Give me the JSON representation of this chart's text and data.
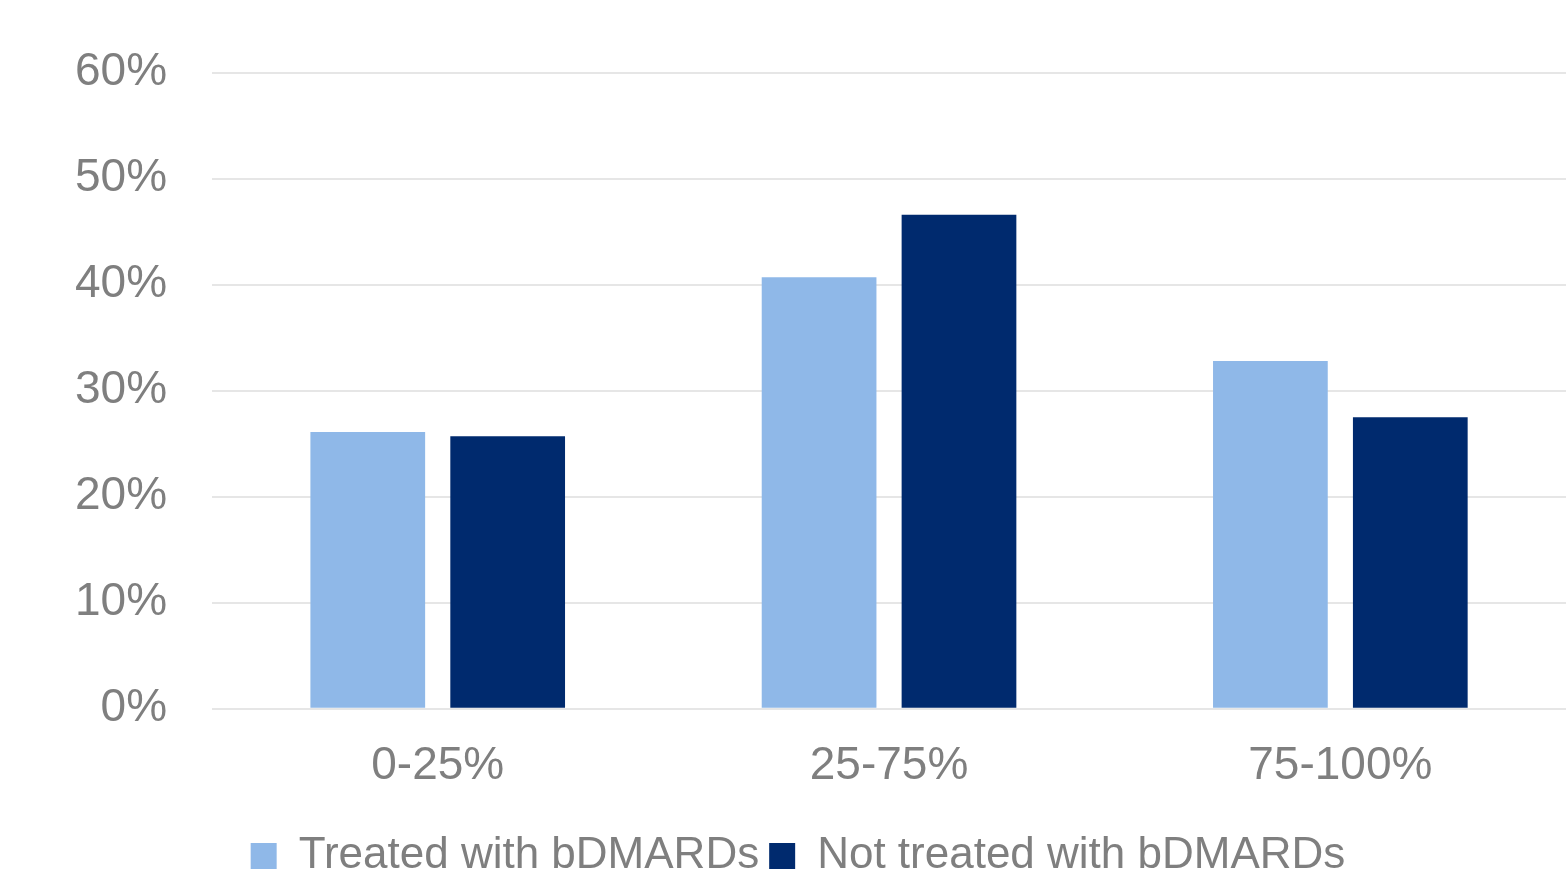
{
  "chart_data": {
    "type": "bar",
    "categories": [
      "0-25%",
      "25-75%",
      "75-100%"
    ],
    "series": [
      {
        "name": "Treated with bDMARDs",
        "color": "#8fb8e8",
        "values": [
          26.1,
          40.7,
          32.8
        ]
      },
      {
        "name": "Not treated with bDMARDs",
        "color": "#002a6e",
        "values": [
          25.7,
          46.6,
          27.5
        ]
      }
    ],
    "ylim": [
      0,
      60
    ],
    "yticks": [
      {
        "value": 0,
        "label": "0%"
      },
      {
        "value": 10,
        "label": "10%"
      },
      {
        "value": 20,
        "label": "20%"
      },
      {
        "value": 30,
        "label": "30%"
      },
      {
        "value": 40,
        "label": "40%"
      },
      {
        "value": 50,
        "label": "50%"
      },
      {
        "value": 60,
        "label": "60%"
      }
    ],
    "grid": "y",
    "legend": "bottom"
  }
}
